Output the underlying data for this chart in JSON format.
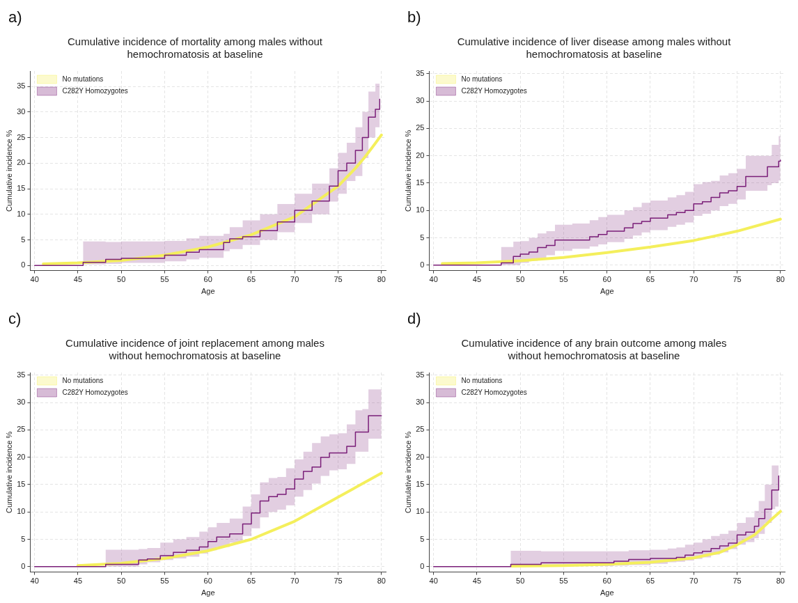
{
  "chart_data": [
    {
      "type": "step",
      "title": "Cumulative incidence of mortality among males without hemochromatosis at baseline",
      "annotations": [
        "a)"
      ],
      "xlabel": "Age",
      "ylabel": "Cumulative incidence %",
      "xlim": [
        39.5,
        80.5
      ],
      "ylim": [
        -1,
        38
      ],
      "xticks": [
        40,
        45,
        50,
        55,
        60,
        65,
        70,
        75,
        80
      ],
      "yticks": [
        0,
        5,
        10,
        15,
        20,
        25,
        30,
        35
      ],
      "grid": true,
      "legend": "top left",
      "series": [
        {
          "name": "No mutations",
          "type": "line",
          "color": "#f4ef5c",
          "x": [
            41,
            45,
            50,
            55,
            60,
            65,
            70,
            75,
            77,
            78,
            79,
            80
          ],
          "values": [
            0.3,
            0.5,
            1.0,
            2.0,
            3.6,
            6.0,
            9.5,
            15.5,
            19,
            21,
            23.2,
            25.5
          ]
        },
        {
          "name": "C282Y Homozygotes",
          "type": "step",
          "color": "#7a1e78",
          "x": [
            40,
            45.6,
            48.2,
            50,
            55,
            57.5,
            59,
            61.8,
            62.5,
            64,
            66,
            68,
            70,
            72,
            74,
            75,
            76,
            77,
            77.8,
            78.5,
            79.3,
            79.8
          ],
          "values": [
            0,
            0.6,
            1.2,
            1.4,
            2.0,
            2.6,
            3.1,
            4.5,
            5.2,
            5.6,
            6.8,
            8.5,
            10.8,
            12.6,
            15.5,
            18.5,
            20.0,
            22.5,
            25.0,
            29,
            30.5,
            32.5
          ],
          "lower": [
            0,
            0.2,
            0.3,
            0.5,
            0.8,
            1.2,
            1.5,
            2.8,
            3.2,
            4.0,
            5.0,
            6.5,
            8.3,
            10.0,
            12.5,
            14.0,
            16.5,
            17.5,
            21,
            25,
            27,
            28.5
          ],
          "upper": [
            0,
            4.7,
            4.6,
            4.7,
            4.8,
            5.3,
            5.8,
            6.2,
            7.5,
            8.8,
            10.0,
            12.0,
            14.0,
            16.0,
            19.0,
            22.0,
            24.0,
            27.0,
            30,
            34,
            35.5,
            37.5
          ]
        }
      ]
    },
    {
      "type": "step",
      "title": "Cumulative incidence of liver disease among males without hemochromatosis at baseline",
      "annotations": [
        "b)"
      ],
      "xlabel": "Age",
      "ylabel": "Cumulative incidence %",
      "xlim": [
        39.5,
        80.5
      ],
      "ylim": [
        -1,
        35.5
      ],
      "xticks": [
        40,
        45,
        50,
        55,
        60,
        65,
        70,
        75,
        80
      ],
      "yticks": [
        0,
        5,
        10,
        15,
        20,
        25,
        30,
        35
      ],
      "grid": true,
      "legend": "top left",
      "series": [
        {
          "name": "No mutations",
          "type": "line",
          "color": "#f4ef5c",
          "x": [
            41,
            45,
            50,
            55,
            60,
            65,
            70,
            75,
            80
          ],
          "values": [
            0.3,
            0.4,
            0.8,
            1.4,
            2.3,
            3.3,
            4.5,
            6.2,
            8.4
          ]
        },
        {
          "name": "C282Y Homozygotes",
          "type": "step",
          "color": "#7a1e78",
          "x": [
            40,
            47.8,
            49.2,
            50,
            51,
            52,
            53,
            54,
            56,
            58,
            59,
            60,
            62,
            63,
            64,
            65,
            67,
            68,
            69,
            70,
            71,
            72,
            73,
            74,
            75,
            76,
            78.5,
            79,
            79.8,
            80
          ],
          "values": [
            0,
            0.4,
            1.6,
            2.0,
            2.4,
            3.2,
            3.6,
            4.6,
            4.6,
            5.2,
            5.6,
            6.2,
            6.8,
            7.6,
            8.0,
            8.6,
            9.2,
            9.6,
            10.0,
            11.2,
            11.6,
            12.4,
            13.2,
            13.6,
            14.4,
            16.2,
            18.0,
            18.0,
            19.0,
            19.2
          ],
          "lower": [
            0,
            0,
            0,
            0.4,
            0.8,
            1.2,
            1.8,
            2.6,
            3.0,
            3.4,
            3.8,
            4.2,
            4.8,
            5.4,
            6.0,
            6.4,
            7.0,
            7.4,
            7.8,
            9.0,
            9.4,
            10.0,
            10.8,
            11.2,
            12.0,
            13.6,
            14.6,
            15.0,
            15.5,
            15.5
          ],
          "upper": [
            0,
            3.3,
            4.3,
            4.4,
            5.0,
            5.8,
            6.2,
            7.4,
            7.6,
            8.2,
            8.8,
            9.2,
            10.0,
            10.6,
            11.4,
            11.8,
            12.4,
            12.8,
            13.4,
            14.8,
            15.2,
            15.4,
            16.4,
            16.8,
            17.6,
            20.0,
            20.0,
            22.0,
            23.6,
            23.6
          ]
        }
      ]
    },
    {
      "type": "step",
      "title": "Cumulative incidence of joint replacement among males without hemochromatosis at baseline",
      "annotations": [
        "c)"
      ],
      "xlabel": "Age",
      "ylabel": "Cumulative incidence %",
      "xlim": [
        39.5,
        80.5
      ],
      "ylim": [
        -1,
        35.5
      ],
      "xticks": [
        40,
        45,
        50,
        55,
        60,
        65,
        70,
        75,
        80
      ],
      "yticks": [
        0,
        5,
        10,
        15,
        20,
        25,
        30,
        35
      ],
      "grid": true,
      "legend": "top left",
      "series": [
        {
          "name": "No mutations",
          "type": "line",
          "color": "#f4ef5c",
          "x": [
            45,
            50,
            55,
            60,
            65,
            70,
            75,
            80
          ],
          "values": [
            0.2,
            0.6,
            1.5,
            2.9,
            5.0,
            8.3,
            12.7,
            17.1
          ]
        },
        {
          "name": "C282Y Homozygotes",
          "type": "step",
          "color": "#7a1e78",
          "x": [
            40,
            48.2,
            52,
            53,
            54.5,
            56,
            57.5,
            59,
            60,
            61,
            62.5,
            64,
            65,
            66,
            67,
            68,
            69,
            70,
            71,
            72,
            73,
            74,
            75,
            76,
            77,
            77.8,
            78.5,
            80
          ],
          "values": [
            0,
            0.4,
            1.2,
            1.4,
            2.0,
            2.6,
            3.0,
            3.6,
            4.6,
            5.4,
            6.0,
            7.8,
            9.8,
            12.0,
            12.8,
            13.2,
            14.2,
            16.0,
            17.4,
            18.2,
            20.0,
            20.8,
            20.8,
            22.0,
            24.6,
            24.6,
            27.6,
            27.6
          ],
          "lower": [
            0,
            0,
            0.4,
            0.8,
            1.2,
            1.5,
            1.8,
            2.4,
            3.0,
            3.6,
            4.4,
            5.6,
            7.0,
            9.0,
            10.0,
            10.4,
            11.2,
            12.8,
            14.0,
            15.2,
            16.6,
            17.6,
            17.8,
            18.8,
            21.0,
            21.0,
            23.4,
            23.4
          ],
          "upper": [
            0,
            3.1,
            3.2,
            3.4,
            4.4,
            5.0,
            5.4,
            6.4,
            7.2,
            8.0,
            8.8,
            11.0,
            13.2,
            15.4,
            16.2,
            16.4,
            18.0,
            19.6,
            21.0,
            22.6,
            23.8,
            24.2,
            24.4,
            26.0,
            28.6,
            28.8,
            32.4,
            32.4
          ]
        }
      ]
    },
    {
      "type": "step",
      "title": "Cumulative incidence of any brain outcome among males without hemochromatosis at baseline",
      "annotations": [
        "d)"
      ],
      "xlabel": "Age",
      "ylabel": "Cumulative incidence %",
      "xlim": [
        39.5,
        80.5
      ],
      "ylim": [
        -1,
        35.5
      ],
      "xticks": [
        40,
        45,
        50,
        55,
        60,
        65,
        70,
        75,
        80
      ],
      "yticks": [
        0,
        5,
        10,
        15,
        20,
        25,
        30,
        35
      ],
      "grid": true,
      "legend": "top left",
      "series": [
        {
          "name": "No mutations",
          "type": "line",
          "color": "#f4ef5c",
          "x": [
            49,
            55,
            60,
            65,
            70,
            73,
            75,
            77,
            78,
            79,
            80
          ],
          "values": [
            0.1,
            0.2,
            0.4,
            0.8,
            1.6,
            2.6,
            4.0,
            5.8,
            7.2,
            8.7,
            10.1
          ]
        },
        {
          "name": "C282Y Homozygotes",
          "type": "step",
          "color": "#7a1e78",
          "x": [
            40,
            48.9,
            52.4,
            60.8,
            62.5,
            65,
            67,
            68,
            69,
            70,
            71,
            72,
            73,
            74,
            75,
            76,
            77,
            77.5,
            78.2,
            79,
            79.4,
            79.8
          ],
          "values": [
            0,
            0.4,
            0.7,
            1.0,
            1.3,
            1.5,
            1.5,
            1.7,
            2.1,
            2.5,
            2.8,
            3.3,
            3.8,
            4.3,
            5.8,
            6.3,
            7.4,
            8.8,
            10.5,
            14.0,
            14.0,
            16.6
          ],
          "lower": [
            0,
            0,
            0.1,
            0.2,
            0.3,
            0.5,
            0.8,
            0.9,
            1.1,
            1.4,
            1.7,
            2.2,
            2.6,
            3.2,
            4.0,
            4.5,
            5.2,
            6.0,
            8.0,
            10.5,
            11.0,
            13.0
          ],
          "upper": [
            0,
            2.9,
            2.8,
            2.8,
            3.0,
            3.1,
            3.3,
            3.5,
            4.0,
            4.4,
            5.0,
            5.6,
            6.0,
            6.6,
            8.0,
            9.0,
            10.2,
            12.0,
            15.0,
            18.5,
            18.5,
            21.6
          ]
        }
      ]
    }
  ]
}
